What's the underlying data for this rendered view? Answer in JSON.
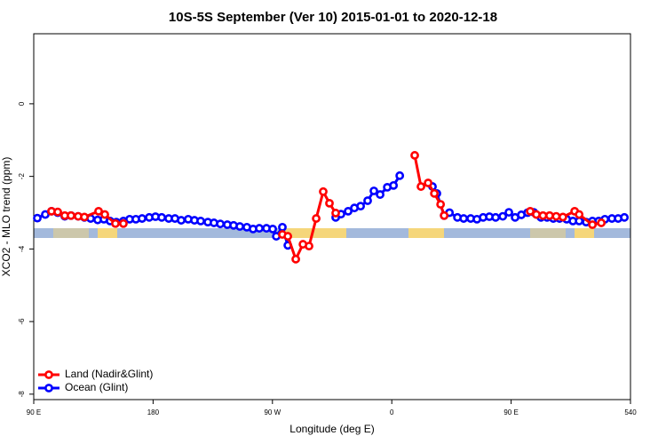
{
  "chart_data": {
    "type": "line",
    "title": "10S-5S September (Ver 10)   2015-01-01 to 2020-12-18",
    "x_label": "Longitude (deg E)",
    "y_label": "XCO2 - MLO trend (ppm)",
    "xlim": [
      90,
      540
    ],
    "ylim": [
      -8.15,
      1.93
    ],
    "xticks": [
      {
        "value": 90,
        "label": "90 E"
      },
      180,
      {
        "value": 270,
        "label": "90 W"
      },
      {
        "value": 360,
        "label": "0"
      },
      {
        "value": 450,
        "label": "90 E"
      },
      540
    ],
    "yticks": [
      0,
      -2,
      -4,
      -6,
      -8
    ],
    "legend": "bottom-left",
    "series": [
      {
        "name": "Land (Nadir&Glint)",
        "color": "#ff0000",
        "x": [
          103.4,
          108.1,
          113.4,
          118.1,
          123.5,
          128.2,
          138.9,
          143.6,
          151.6,
          157.6,
          160,
          277.5,
          281.6,
          287.6,
          293,
          297.6,
          303,
          308.3,
          313,
          317.7,
          340,
          377.3,
          382,
          387.4,
          392.1,
          396.8,
          399.5,
          430,
          464.4,
          469,
          474,
          479,
          484,
          489,
          497.9,
          501.3,
          511.3,
          518
        ],
        "values": [
          -2.96,
          -2.98,
          -3.08,
          -3.08,
          -3.1,
          -3.12,
          -2.96,
          -3.05,
          -3.3,
          -3.3,
          null,
          -3.6,
          -3.65,
          -4.28,
          -3.87,
          -3.92,
          -3.16,
          -2.42,
          -2.74,
          -3.01,
          null,
          -1.42,
          -2.28,
          -2.18,
          -2.47,
          -2.77,
          -3.08,
          null,
          -2.96,
          -3.05,
          -3.08,
          -3.08,
          -3.1,
          -3.12,
          -2.96,
          -3.05,
          -3.33,
          -3.28
        ]
      },
      {
        "name": "Ocean (Glint)",
        "color": "#0000ff",
        "x": [
          92.7,
          98.7,
          103.4,
          108.1,
          113.4,
          118.1,
          123.5,
          128.2,
          132.9,
          138.2,
          142.9,
          147.6,
          152.3,
          157.6,
          162.3,
          167,
          171.7,
          177.1,
          181.8,
          186.5,
          191.8,
          196.5,
          201.2,
          206.5,
          211.2,
          215.9,
          221.3,
          225.9,
          230.7,
          236,
          240.7,
          245.4,
          250.7,
          255.4,
          260.1,
          265.5,
          270.2,
          272.9,
          277.5,
          281.6,
          300,
          317.7,
          321.7,
          327.1,
          331.8,
          336.5,
          341.8,
          346.5,
          351.2,
          356.6,
          361.3,
          366,
          380,
          390.7,
          394,
          399.5,
          403.5,
          409.5,
          414.2,
          419.5,
          424.2,
          428.9,
          433.6,
          438.3,
          443.7,
          448.3,
          453,
          457.7,
          462.4,
          467.1,
          472.5,
          477.1,
          481.8,
          486.5,
          491.9,
          496.6,
          501.3,
          506.6,
          511.3,
          516,
          520.7,
          526,
          530.7,
          535.4
        ],
        "values": [
          -3.15,
          -3.05,
          -2.96,
          -3.0,
          -3.1,
          -3.08,
          -3.1,
          -3.13,
          -3.16,
          -3.2,
          -3.18,
          -3.23,
          -3.26,
          -3.23,
          -3.18,
          -3.18,
          -3.16,
          -3.13,
          -3.11,
          -3.13,
          -3.16,
          -3.16,
          -3.21,
          -3.18,
          -3.21,
          -3.23,
          -3.26,
          -3.28,
          -3.31,
          -3.33,
          -3.35,
          -3.38,
          -3.4,
          -3.45,
          -3.43,
          -3.43,
          -3.45,
          -3.65,
          -3.4,
          -3.9,
          null,
          -3.13,
          -3.04,
          -2.96,
          -2.87,
          -2.82,
          -2.67,
          -2.4,
          -2.5,
          -2.3,
          -2.25,
          -1.98,
          null,
          -2.28,
          -2.47,
          -3.08,
          -3.0,
          -3.13,
          -3.16,
          -3.16,
          -3.18,
          -3.13,
          -3.11,
          -3.13,
          -3.1,
          -2.99,
          -3.13,
          -3.06,
          -3.0,
          -2.99,
          -3.13,
          -3.13,
          -3.16,
          -3.16,
          -3.18,
          -3.23,
          -3.23,
          -3.26,
          -3.23,
          -3.23,
          -3.18,
          -3.16,
          -3.16,
          -3.13
        ]
      }
    ]
  }
}
